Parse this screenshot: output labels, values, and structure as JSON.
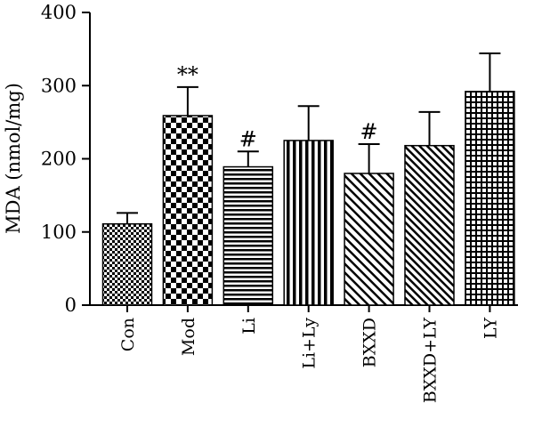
{
  "chart_data": {
    "type": "bar",
    "ylabel": "MDA (nmol/mg)",
    "xlabel": "",
    "ylim": [
      0,
      400
    ],
    "yticks": [
      0,
      100,
      200,
      300,
      400
    ],
    "categories": [
      "Con",
      "Mod",
      "Li",
      "Li+Ly",
      "BXXD",
      "BXXD+LY",
      "LY"
    ],
    "values": [
      111,
      259,
      189,
      225,
      180,
      218,
      292
    ],
    "errors": [
      15,
      39,
      21,
      47,
      40,
      46,
      52
    ],
    "annotations": [
      "",
      "**",
      "#",
      "",
      "#",
      "",
      ""
    ],
    "patterns": [
      "small-checker",
      "large-checker",
      "horizontal-lines",
      "vertical-lines",
      "diagonal-lines",
      "diagonal-lines-dense",
      "grid"
    ],
    "grid": false,
    "legend": "none"
  }
}
